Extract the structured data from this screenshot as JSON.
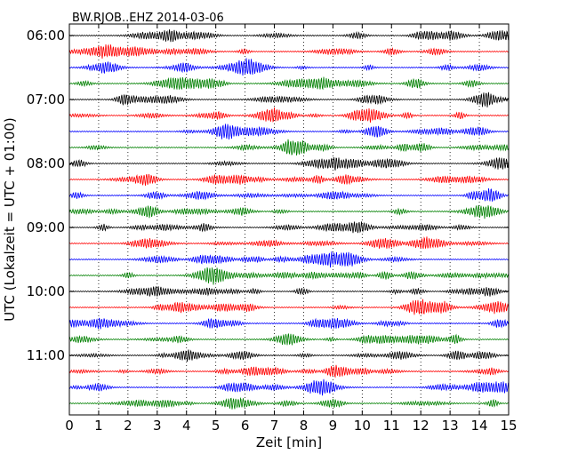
{
  "chart_data": {
    "type": "line",
    "title": "BW.RJOB..EHZ 2014-03-06",
    "xlabel": "Zeit  [min]",
    "ylabel": "UTC (Lokalzeit = UTC + 01:00)",
    "xlim": [
      0,
      15
    ],
    "x_ticks": [
      "0",
      "1",
      "2",
      "3",
      "4",
      "5",
      "6",
      "7",
      "8",
      "9",
      "10",
      "11",
      "12",
      "13",
      "14",
      "15"
    ],
    "y_tick_labels": [
      "06:00",
      "07:00",
      "08:00",
      "09:00",
      "10:00",
      "11:00"
    ],
    "trace_minutes": 15,
    "trace_start_times": [
      "06:00",
      "06:15",
      "06:30",
      "06:45",
      "07:00",
      "07:15",
      "07:30",
      "07:45",
      "08:00",
      "08:15",
      "08:30",
      "08:45",
      "09:00",
      "09:15",
      "09:30",
      "09:45",
      "10:00",
      "10:15",
      "10:30",
      "10:45",
      "11:00",
      "11:15",
      "11:30",
      "11:45"
    ],
    "colors": [
      "#000000",
      "#ff0000",
      "#0000ff",
      "#008000"
    ],
    "grid": "vertical dotted",
    "legend": "none"
  }
}
